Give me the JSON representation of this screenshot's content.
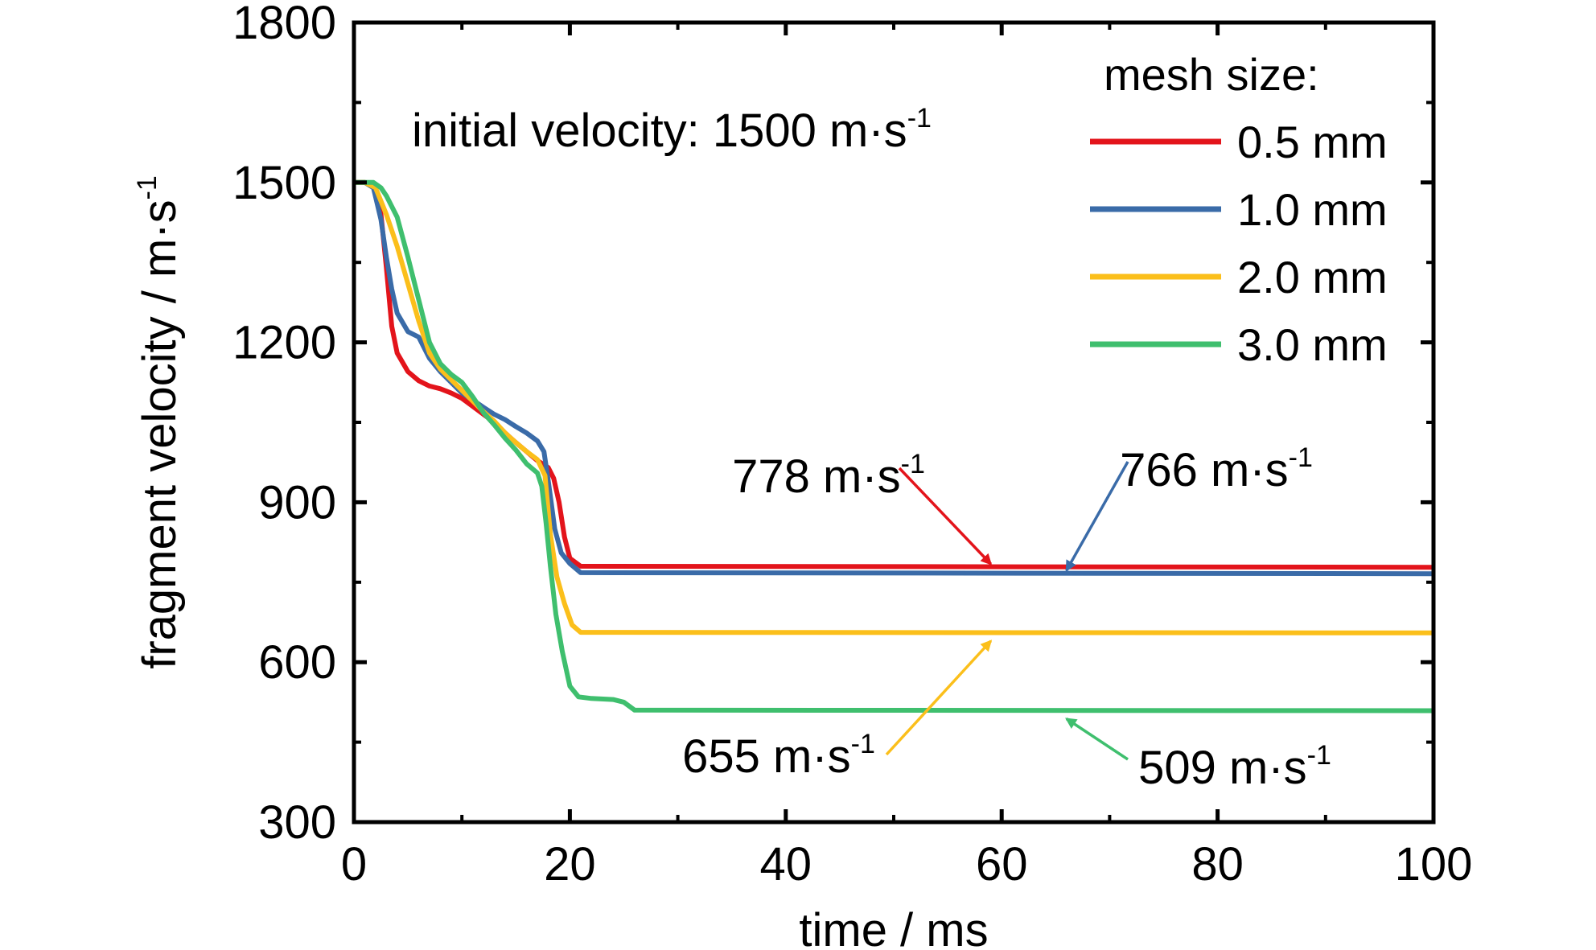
{
  "chart_data": {
    "type": "line",
    "xlabel": "time / ms",
    "ylabel": "fragment velocity / m·s",
    "ylabel_sup": "-1",
    "xlim": [
      0,
      100
    ],
    "ylim": [
      300,
      1800
    ],
    "xticks": [
      0,
      20,
      40,
      60,
      80,
      100
    ],
    "yticks": [
      300,
      600,
      900,
      1200,
      1500,
      1800
    ],
    "grid": false,
    "legend": {
      "title": "mesh size:",
      "placement": "top-right"
    },
    "annotation_top": {
      "text": "initial velocity: 1500 m·s",
      "sup": "-1"
    },
    "series": [
      {
        "name": "0.5 mm",
        "color": "#e3141b",
        "points": [
          [
            0,
            1500
          ],
          [
            1,
            1500
          ],
          [
            1.8,
            1495
          ],
          [
            2.5,
            1440
          ],
          [
            3,
            1340
          ],
          [
            3.5,
            1230
          ],
          [
            4,
            1180
          ],
          [
            5,
            1145
          ],
          [
            6,
            1128
          ],
          [
            7,
            1118
          ],
          [
            8,
            1113
          ],
          [
            9,
            1105
          ],
          [
            10,
            1095
          ],
          [
            11,
            1080
          ],
          [
            12,
            1065
          ],
          [
            13,
            1050
          ],
          [
            14,
            1030
          ],
          [
            15,
            1012
          ],
          [
            16,
            995
          ],
          [
            17,
            978
          ],
          [
            18,
            965
          ],
          [
            18.5,
            945
          ],
          [
            19,
            900
          ],
          [
            19.5,
            835
          ],
          [
            20,
            795
          ],
          [
            21,
            780
          ],
          [
            100,
            778
          ]
        ],
        "final_label": "778 m·s",
        "final_label_sup": "-1",
        "arrow_x": 59,
        "label_color": "#e3141b"
      },
      {
        "name": "1.0 mm",
        "color": "#3a6ba8",
        "points": [
          [
            0,
            1500
          ],
          [
            1,
            1500
          ],
          [
            1.8,
            1490
          ],
          [
            2.5,
            1430
          ],
          [
            3,
            1360
          ],
          [
            3.5,
            1300
          ],
          [
            4,
            1255
          ],
          [
            5,
            1220
          ],
          [
            6,
            1210
          ],
          [
            7,
            1170
          ],
          [
            8,
            1145
          ],
          [
            9,
            1125
          ],
          [
            10,
            1105
          ],
          [
            11,
            1092
          ],
          [
            12,
            1078
          ],
          [
            13,
            1065
          ],
          [
            14,
            1055
          ],
          [
            15,
            1042
          ],
          [
            16,
            1030
          ],
          [
            17,
            1015
          ],
          [
            17.6,
            995
          ],
          [
            18,
            940
          ],
          [
            18.6,
            850
          ],
          [
            19.2,
            805
          ],
          [
            20,
            785
          ],
          [
            21,
            768
          ],
          [
            100,
            766
          ]
        ],
        "final_label": "766 m·s",
        "final_label_sup": "-1",
        "arrow_x": 66,
        "label_color": "#3a6ba8"
      },
      {
        "name": "2.0 mm",
        "color": "#fbbf1b",
        "points": [
          [
            0,
            1500
          ],
          [
            1,
            1500
          ],
          [
            2,
            1490
          ],
          [
            3,
            1440
          ],
          [
            4,
            1380
          ],
          [
            5,
            1310
          ],
          [
            6,
            1240
          ],
          [
            7,
            1180
          ],
          [
            8,
            1150
          ],
          [
            9,
            1130
          ],
          [
            10,
            1110
          ],
          [
            11,
            1090
          ],
          [
            12,
            1070
          ],
          [
            13,
            1052
          ],
          [
            14,
            1030
          ],
          [
            15,
            1012
          ],
          [
            16,
            995
          ],
          [
            17,
            980
          ],
          [
            17.7,
            950
          ],
          [
            18.2,
            840
          ],
          [
            18.8,
            760
          ],
          [
            19.5,
            710
          ],
          [
            20.2,
            670
          ],
          [
            21,
            656
          ],
          [
            100,
            655
          ]
        ],
        "final_label": "655 m·s",
        "final_label_sup": "-1",
        "arrow_x": 59,
        "label_color": "#fbbf1b"
      },
      {
        "name": "3.0 mm",
        "color": "#3fbf6e",
        "points": [
          [
            0,
            1500
          ],
          [
            1,
            1500
          ],
          [
            1.8,
            1500
          ],
          [
            2.5,
            1490
          ],
          [
            3,
            1475
          ],
          [
            4,
            1435
          ],
          [
            5,
            1360
          ],
          [
            6,
            1280
          ],
          [
            7,
            1200
          ],
          [
            8,
            1160
          ],
          [
            9,
            1140
          ],
          [
            10,
            1125
          ],
          [
            11,
            1098
          ],
          [
            12,
            1068
          ],
          [
            13,
            1045
          ],
          [
            14,
            1020
          ],
          [
            15,
            998
          ],
          [
            16,
            972
          ],
          [
            17,
            955
          ],
          [
            17.4,
            930
          ],
          [
            17.8,
            860
          ],
          [
            18.2,
            780
          ],
          [
            18.7,
            690
          ],
          [
            19.3,
            620
          ],
          [
            20,
            555
          ],
          [
            20.8,
            535
          ],
          [
            22,
            532
          ],
          [
            24,
            530
          ],
          [
            25,
            525
          ],
          [
            26,
            510
          ],
          [
            100,
            509
          ]
        ],
        "final_label": "509 m·s",
        "final_label_sup": "-1",
        "arrow_x": 66,
        "label_color": "#3fbf6e"
      }
    ]
  }
}
